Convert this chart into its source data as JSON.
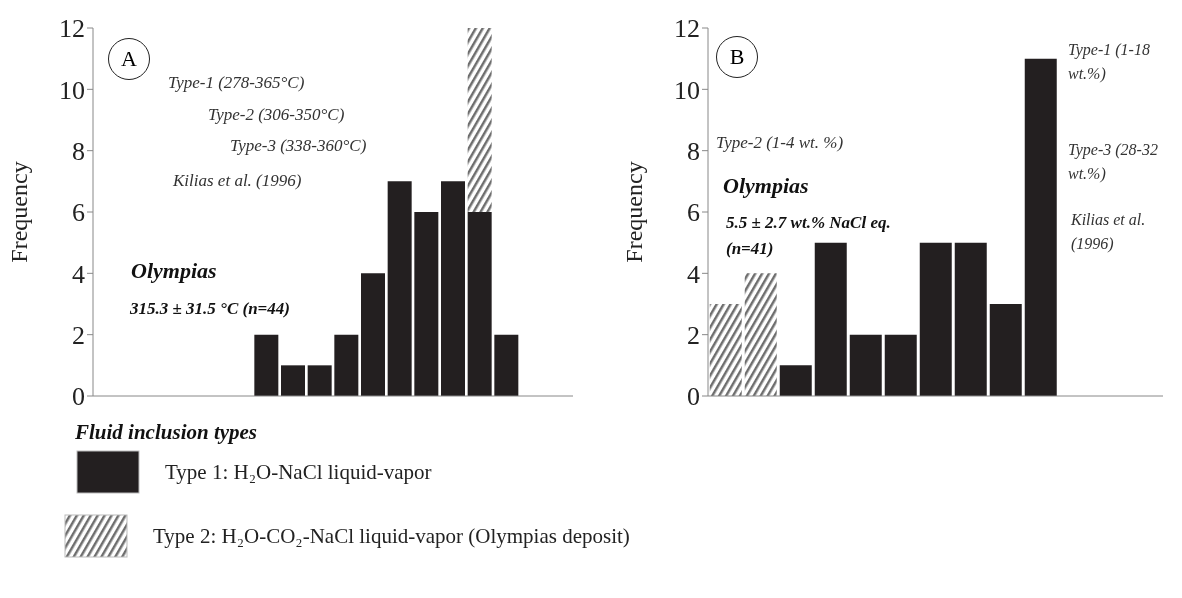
{
  "chart_data": [
    {
      "type": "bar",
      "stacked": true,
      "ylabel": "Frequency",
      "ylim": [
        0,
        12
      ],
      "yticks": [
        0,
        2,
        4,
        6,
        8,
        10,
        12
      ],
      "tick_labels": "y",
      "legend": "bottom",
      "legend_title": "Fluid inclusion types",
      "categories": [
        null,
        null,
        null,
        null,
        null,
        null,
        null,
        null,
        null,
        null,
        null,
        null,
        null,
        null,
        null,
        null,
        null,
        null
      ],
      "series": [
        {
          "name": "Type 1: H₂O-NaCl liquid-vapor",
          "color": "#231f20",
          "values": [
            null,
            null,
            null,
            null,
            null,
            null,
            2,
            1,
            1,
            2,
            4,
            7,
            6,
            7,
            6,
            2,
            null,
            null
          ]
        },
        {
          "name": "Type 2: H₂O-CO₂-NaCl liquid-vapor (Olympias deposit)",
          "color": "#6e6e6e",
          "values": [
            null,
            null,
            null,
            null,
            null,
            null,
            null,
            null,
            null,
            null,
            null,
            null,
            null,
            null,
            6,
            null,
            null,
            null
          ]
        }
      ],
      "annotations": [
        "A",
        "Type-1 (278-365°C)",
        "Type-2 (306-350°C)",
        "Type-3 (338-360°C)",
        "Kilias et al. (1996)",
        "Olympias",
        "315.3 ± 31.5 °C (n=44)"
      ]
    },
    {
      "type": "bar",
      "stacked": true,
      "ylabel": "Frequency",
      "ylim": [
        0,
        12
      ],
      "yticks": [
        0,
        2,
        4,
        6,
        8,
        10,
        12
      ],
      "tick_labels": "y",
      "categories": [
        null,
        null,
        null,
        null,
        null,
        null,
        null,
        null,
        null,
        null,
        null,
        null,
        null
      ],
      "series": [
        {
          "color": "#231f20",
          "values": [
            null,
            null,
            1,
            5,
            2,
            2,
            5,
            5,
            3,
            11,
            null,
            null,
            null
          ]
        },
        {
          "color": "#6e6e6e",
          "values": [
            3,
            4,
            null,
            null,
            null,
            null,
            null,
            null,
            null,
            null,
            null,
            null,
            null
          ]
        }
      ],
      "annotations": [
        "B",
        "Type-1 (1-18 wt.%)",
        "Type-2 (1-4 wt. %)",
        "Type-3 (28-32 wt.%)",
        "Kilias et al. (1996)",
        "Olympias",
        "5.5 ± 2.7 wt.% NaCl eq. (n=41)"
      ]
    }
  ]
}
